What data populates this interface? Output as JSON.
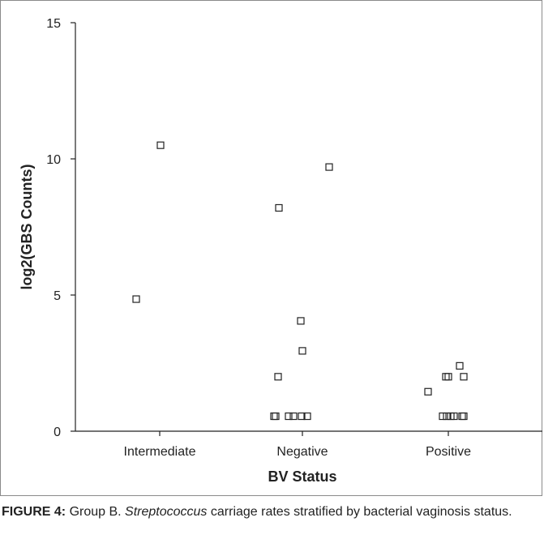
{
  "chart_data": {
    "type": "scatter",
    "title": "",
    "xlabel": "BV Status",
    "ylabel": "log2(GBS Counts)",
    "categories": [
      "Intermediate",
      "Negative",
      "Positive"
    ],
    "ylim": [
      0,
      15
    ],
    "yticks": [
      0,
      5,
      10,
      15
    ],
    "grid": false,
    "marker": "open-square",
    "colors": {
      "axis": "#222222",
      "marker": "#222222"
    },
    "points": [
      {
        "category": "Intermediate",
        "jitter": 0.01,
        "y": 10.5
      },
      {
        "category": "Intermediate",
        "jitter": -0.29,
        "y": 4.85
      },
      {
        "category": "Negative",
        "jitter": 0.33,
        "y": 9.7
      },
      {
        "category": "Negative",
        "jitter": -0.29,
        "y": 8.2
      },
      {
        "category": "Negative",
        "jitter": -0.02,
        "y": 4.05
      },
      {
        "category": "Negative",
        "jitter": 0.0,
        "y": 2.95
      },
      {
        "category": "Negative",
        "jitter": -0.3,
        "y": 2.0
      },
      {
        "category": "Negative",
        "jitter": -0.35,
        "y": 0.55
      },
      {
        "category": "Negative",
        "jitter": -0.33,
        "y": 0.55
      },
      {
        "category": "Negative",
        "jitter": -0.17,
        "y": 0.55
      },
      {
        "category": "Negative",
        "jitter": -0.11,
        "y": 0.55
      },
      {
        "category": "Negative",
        "jitter": -0.01,
        "y": 0.55
      },
      {
        "category": "Negative",
        "jitter": 0.06,
        "y": 0.55
      },
      {
        "category": "Positive",
        "jitter": -0.25,
        "y": 1.45
      },
      {
        "category": "Positive",
        "jitter": -0.03,
        "y": 2.0
      },
      {
        "category": "Positive",
        "jitter": 0.0,
        "y": 2.0
      },
      {
        "category": "Positive",
        "jitter": 0.14,
        "y": 2.4
      },
      {
        "category": "Positive",
        "jitter": 0.19,
        "y": 2.0
      },
      {
        "category": "Positive",
        "jitter": -0.07,
        "y": 0.55
      },
      {
        "category": "Positive",
        "jitter": -0.02,
        "y": 0.55
      },
      {
        "category": "Positive",
        "jitter": 0.03,
        "y": 0.55
      },
      {
        "category": "Positive",
        "jitter": 0.07,
        "y": 0.55
      },
      {
        "category": "Positive",
        "jitter": 0.17,
        "y": 0.55
      },
      {
        "category": "Positive",
        "jitter": 0.19,
        "y": 0.55
      }
    ]
  },
  "caption": {
    "label": "FIGURE 4:",
    "text_before": " Group B. ",
    "italic": "Streptococcus",
    "text_after": " carriage rates stratified by bacterial vaginosis status."
  }
}
